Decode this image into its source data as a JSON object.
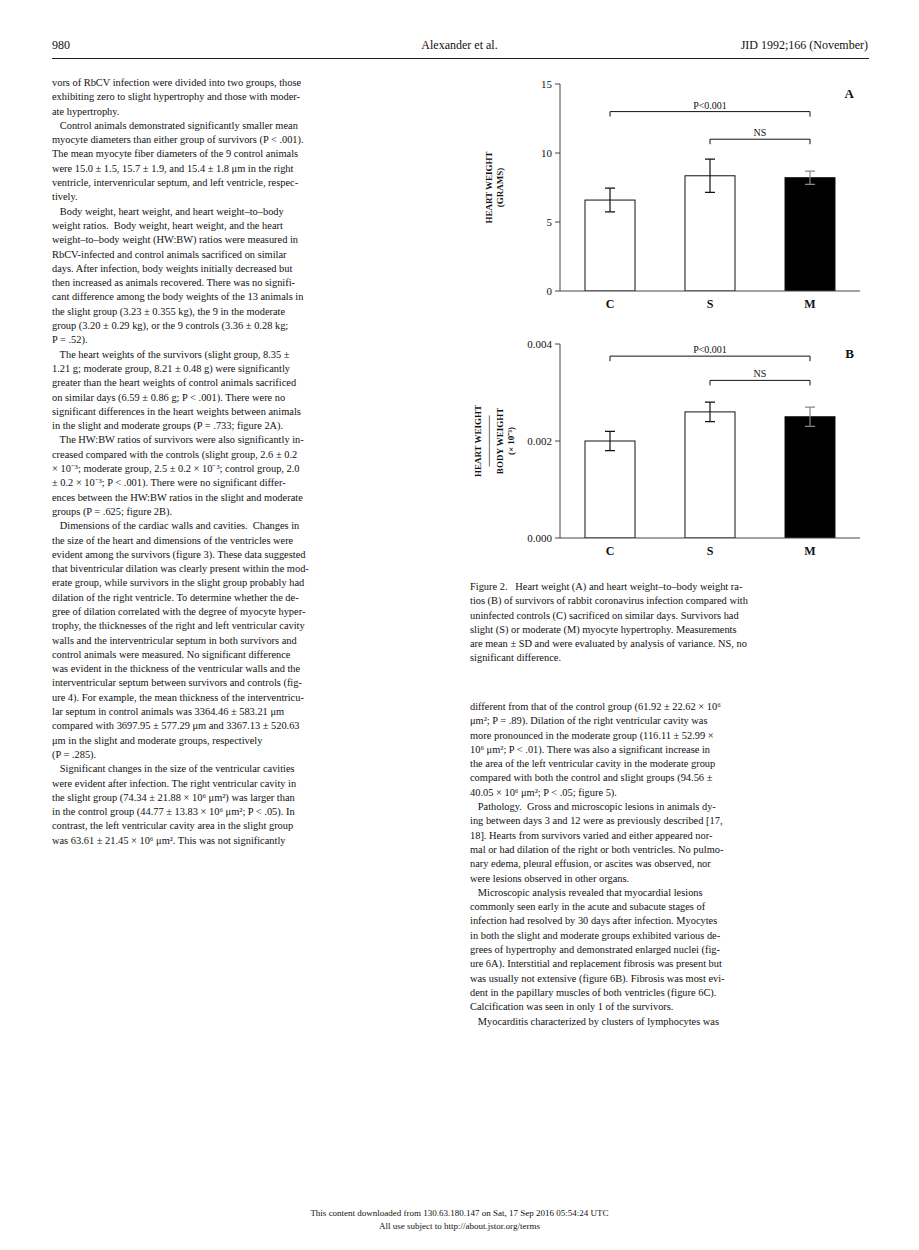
{
  "page_number": "980",
  "header_left": "Alexander et al.",
  "header_right": "JID 1992;166 (November)",
  "footer_line1": "This content downloaded from 130.63.180.147 on Sat, 17 Sep 2016 05:54:24 UTC",
  "footer_line2": "All use subject to http://about.jstor.org/terms",
  "left_col_text": "vors of RbCV infection were divided into two groups, those\nexhibiting zero to slight hypertrophy and those with moder-\nate hypertrophy.\n   Control animals demonstrated significantly smaller mean\nmyocyte diameters than either group of survivors (P < .001).\nThe mean myocyte fiber diameters of the 9 control animals\nwere 15.0 ± 1.5, 15.7 ± 1.9, and 15.4 ± 1.8 μm in the right\nventricle, intervenricular septum, and left ventricle, respec-\ntively.\n   Body weight, heart weight, and heart weight–to–body\nweight ratios.  Body weight, heart weight, and the heart\nweight–to–body weight (HW:BW) ratios were measured in\nRbCV-infected and control animals sacrificed on similar\ndays. After infection, body weights initially decreased but\nthen increased as animals recovered. There was no signifi-\ncant difference among the body weights of the 13 animals in\nthe slight group (3.23 ± 0.355 kg), the 9 in the moderate\ngroup (3.20 ± 0.29 kg), or the 9 controls (3.36 ± 0.28 kg;\nP = .52).\n   The heart weights of the survivors (slight group, 8.35 ±\n1.21 g; moderate group, 8.21 ± 0.48 g) were significantly\ngreater than the heart weights of control animals sacrificed\non similar days (6.59 ± 0.86 g; P < .001). There were no\nsignificant differences in the heart weights between animals\nin the slight and moderate groups (P = .733; figure 2A).\n   The HW:BW ratios of survivors were also significantly in-\ncreased compared with the controls (slight group, 2.6 ± 0.2\n× 10⁻³; moderate group, 2.5 ± 0.2 × 10⁻³; control group, 2.0\n± 0.2 × 10⁻³; P < .001). There were no significant differ-\nences between the HW:BW ratios in the slight and moderate\ngroups (P = .625; figure 2B).\n   Dimensions of the cardiac walls and cavities.  Changes in\nthe size of the heart and dimensions of the ventricles were\nevident among the survivors (figure 3). These data suggested\nthat biventricular dilation was clearly present within the mod-\nerate group, while survivors in the slight group probably had\ndilation of the right ventricle. To determine whether the de-\ngree of dilation correlated with the degree of myocyte hyper-\ntrophy, the thicknesses of the right and left ventricular cavity\nwalls and the interventricular septum in both survivors and\ncontrol animals were measured. No significant difference\nwas evident in the thickness of the ventricular walls and the\ninterventricular septum between survivors and controls (fig-\nure 4). For example, the mean thickness of the interventricu-\nlar septum in control animals was 3364.46 ± 583.21 μm\ncompared with 3697.95 ± 577.29 μm and 3367.13 ± 520.63\nμm in the slight and moderate groups, respectively\n(P = .285).\n   Significant changes in the size of the ventricular cavities\nwere evident after infection. The right ventricular cavity in\nthe slight group (74.34 ± 21.88 × 10⁶ μm²) was larger than\nin the control group (44.77 ± 13.83 × 10⁶ μm²; P < .05). In\ncontrast, the left ventricular cavity area in the slight group\nwas 63.61 ± 21.45 × 10⁶ μm². This was not significantly",
  "figure_caption": "Figure 2.   Heart weight (A) and heart weight–to–body weight ra-\ntios (B) of survivors of rabbit coronavirus infection compared with\nuninfected controls (C) sacrificed on similar days. Survivors had\nslight (S) or moderate (M) myocyte hypertrophy. Measurements\nare mean ± SD and were evaluated by analysis of variance. NS, no\nsignificant difference.",
  "right_col_lower_text": "different from that of the control group (61.92 ± 22.62 × 10⁶\nμm²; P = .89). Dilation of the right ventricular cavity was\nmore pronounced in the moderate group (116.11 ± 52.99 ×\n10⁶ μm²; P < .01). There was also a significant increase in\nthe area of the left ventricular cavity in the moderate group\ncompared with both the control and slight groups (94.56 ±\n40.05 × 10⁶ μm²; P < .05; figure 5).\n   Pathology.  Gross and microscopic lesions in animals dy-\ning between days 3 and 12 were as previously described [17,\n18]. Hearts from survivors varied and either appeared nor-\nmal or had dilation of the right or both ventricles. No pulmo-\nnary edema, pleural effusion, or ascites was observed, nor\nwere lesions observed in other organs.\n   Microscopic analysis revealed that myocardial lesions\ncommonly seen early in the acute and subacute stages of\ninfection had resolved by 30 days after infection. Myocytes\nin both the slight and moderate groups exhibited various de-\ngrees of hypertrophy and demonstrated enlarged nuclei (fig-\nure 6A). Interstitial and replacement fibrosis was present but\nwas usually not extensive (figure 6B). Fibrosis was most evi-\ndent in the papillary muscles of both ventricles (figure 6C).\nCalcification was seen in only 1 of the survivors.\n   Myocarditis characterized by clusters of lymphocytes was",
  "chart_data": [
    {
      "type": "bar",
      "title": "A",
      "y_label": "HEART WEIGHT\n(GRAMS)",
      "categories": [
        "C",
        "S",
        "M"
      ],
      "values": [
        6.59,
        8.35,
        8.21
      ],
      "errors": [
        0.86,
        1.21,
        0.48
      ],
      "colors": [
        "white",
        "white",
        "black"
      ],
      "ylim": [
        0,
        15
      ],
      "yticks": [
        0,
        5,
        10,
        15
      ],
      "annotations": [
        {
          "text": "P<0.001",
          "from": "C",
          "to": "M",
          "y": 13.0
        },
        {
          "text": "NS",
          "from": "S",
          "to": "M",
          "y": 11.0
        }
      ]
    },
    {
      "type": "bar",
      "title": "B",
      "y_label": "HEART WEIGHT\n────────\nBODY WEIGHT\n(× 10⁻³)",
      "categories": [
        "C",
        "S",
        "M"
      ],
      "values": [
        0.002,
        0.0026,
        0.0025
      ],
      "errors": [
        0.0002,
        0.0002,
        0.0002
      ],
      "colors": [
        "white",
        "white",
        "black"
      ],
      "ylim": [
        0,
        0.004
      ],
      "yticks": [
        {
          "value": 0,
          "label": "0.000"
        },
        0.002,
        0.004
      ],
      "annotations": [
        {
          "text": "P<0.001",
          "from": "C",
          "to": "M",
          "y": 0.00375
        },
        {
          "text": "NS",
          "from": "S",
          "to": "M",
          "y": 0.00325
        }
      ]
    }
  ]
}
